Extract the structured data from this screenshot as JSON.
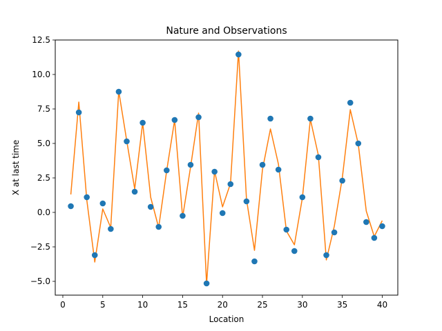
{
  "chart_data": {
    "type": "line",
    "title": "Nature and Observations",
    "xlabel": "Location",
    "ylabel": "X at last time",
    "xlim": [
      -0.95,
      41.95
    ],
    "ylim": [
      -6.0,
      12.5
    ],
    "xticks": [
      0,
      5,
      10,
      15,
      20,
      25,
      30,
      35,
      40
    ],
    "yticks": [
      -5.0,
      -2.5,
      0.0,
      2.5,
      5.0,
      7.5,
      10.0,
      12.5
    ],
    "xtick_labels": [
      "0",
      "5",
      "10",
      "15",
      "20",
      "25",
      "30",
      "35",
      "40"
    ],
    "ytick_labels": [
      "−5.0",
      "−2.5",
      "0.0",
      "2.5",
      "5.0",
      "7.5",
      "10.0",
      "12.5"
    ],
    "grid": false,
    "x": [
      1,
      2,
      3,
      4,
      5,
      6,
      7,
      8,
      9,
      10,
      11,
      12,
      13,
      14,
      15,
      16,
      17,
      18,
      19,
      20,
      21,
      22,
      23,
      24,
      25,
      26,
      27,
      28,
      29,
      30,
      31,
      32,
      33,
      34,
      35,
      36,
      37,
      38,
      39,
      40
    ],
    "series": [
      {
        "kind": "scatter",
        "color": "#1f77b4",
        "values": [
          0.45,
          7.25,
          1.1,
          -3.1,
          0.65,
          -1.2,
          8.75,
          5.15,
          1.5,
          6.5,
          0.4,
          -1.05,
          3.05,
          6.7,
          -0.25,
          3.45,
          6.9,
          -5.15,
          2.95,
          -0.05,
          2.05,
          11.45,
          0.8,
          -3.55,
          3.45,
          6.8,
          3.1,
          -1.25,
          -2.8,
          1.1,
          6.8,
          4.0,
          -3.1,
          -1.45,
          2.3,
          7.95,
          5.0,
          -0.7,
          -1.85,
          -1.0
        ]
      },
      {
        "kind": "line",
        "color": "#ff7f0e",
        "values": [
          1.3,
          8.0,
          0.9,
          -3.6,
          0.25,
          -1.1,
          8.8,
          5.2,
          1.7,
          6.5,
          1.1,
          -1.1,
          3.0,
          6.7,
          -0.35,
          3.3,
          7.2,
          -5.2,
          3.0,
          0.4,
          2.1,
          11.7,
          0.95,
          -2.75,
          3.1,
          6.05,
          3.5,
          -1.35,
          -2.35,
          1.05,
          6.75,
          4.15,
          -3.45,
          -1.0,
          2.5,
          7.45,
          4.95,
          0.1,
          -1.75,
          -0.6
        ]
      }
    ]
  }
}
